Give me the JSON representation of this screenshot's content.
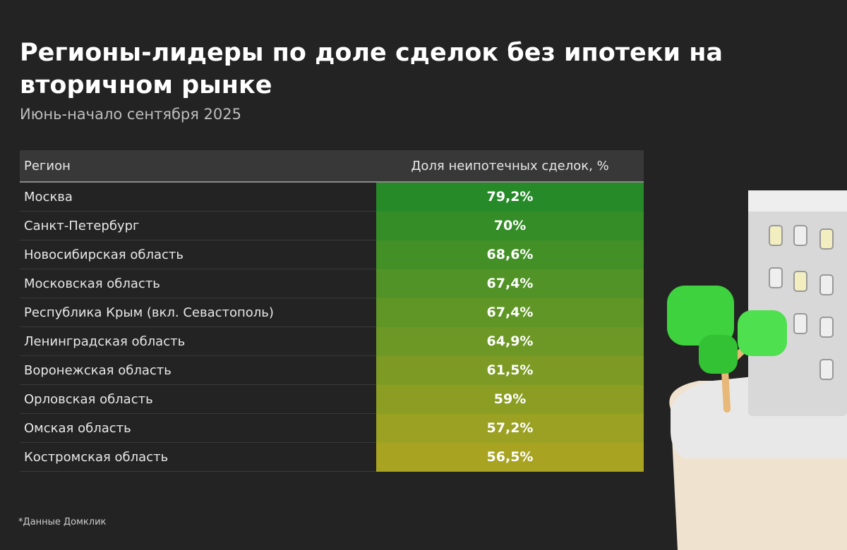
{
  "header": {
    "title": "Регионы-лидеры по доле сделок без ипотеки на вторичном рынке",
    "subtitle": "Июнь-начало сентября 2025"
  },
  "table": {
    "columns": [
      "Регион",
      "Доля неипотечных сделок, %"
    ],
    "rows": [
      [
        "Москва",
        "79,2%"
      ],
      [
        "Санкт-Петербург",
        "70%"
      ],
      [
        "Новосибирская область",
        "68,6%"
      ],
      [
        "Московская область",
        "67,4%"
      ],
      [
        "Республика Крым (вкл. Севастополь)",
        "67,4%"
      ],
      [
        "Ленинградская область",
        "64,9%"
      ],
      [
        "Воронежская область",
        "61,5%"
      ],
      [
        "Орловская область",
        "59%"
      ],
      [
        "Омская область",
        "57,2%"
      ],
      [
        "Костромская область",
        "56,5%"
      ]
    ]
  },
  "footnote": "*Данные Домклик"
}
